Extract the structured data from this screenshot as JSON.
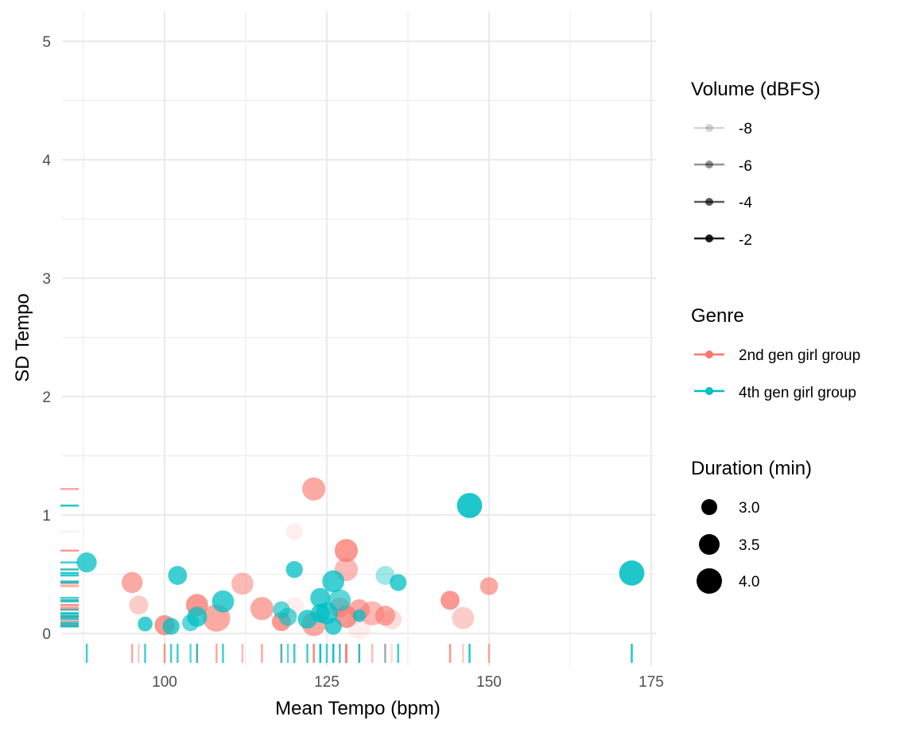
{
  "chart_data": {
    "type": "scatter",
    "xlabel": "Mean Tempo (bpm)",
    "ylabel": "SD Tempo",
    "xlim": [
      85,
      175
    ],
    "ylim": [
      0,
      5
    ],
    "x_ticks": [
      "100",
      "125",
      "150",
      "175"
    ],
    "y_ticks": [
      "0",
      "1",
      "2",
      "3",
      "4",
      "5"
    ],
    "grid": true,
    "rug": true,
    "legend_position": "right",
    "colors": {
      "2nd gen girl group": "#F8766D",
      "4th gen girl group": "#00BFC4"
    },
    "legends": {
      "volume": {
        "title": "Volume (dBFS)",
        "items": [
          "-8",
          "-6",
          "-4",
          "-2"
        ]
      },
      "genre": {
        "title": "Genre",
        "items": [
          "2nd gen girl group",
          "4th gen girl group"
        ]
      },
      "duration": {
        "title": "Duration (min)",
        "items": [
          "3.0",
          "3.5",
          "4.0"
        ]
      }
    },
    "series": [
      {
        "name": "2nd gen girl group",
        "points": [
          {
            "x": 95,
            "y": 0.43,
            "volume": -4,
            "duration": 3.5
          },
          {
            "x": 96,
            "y": 0.24,
            "volume": -6,
            "duration": 3.3
          },
          {
            "x": 100,
            "y": 0.07,
            "volume": -3,
            "duration": 3.4
          },
          {
            "x": 105,
            "y": 0.24,
            "volume": -3,
            "duration": 3.6
          },
          {
            "x": 108,
            "y": 0.13,
            "volume": -4,
            "duration": 4.1
          },
          {
            "x": 112,
            "y": 0.42,
            "volume": -5,
            "duration": 3.6
          },
          {
            "x": 115,
            "y": 0.21,
            "volume": -4,
            "duration": 3.7
          },
          {
            "x": 118,
            "y": 0.1,
            "volume": -3,
            "duration": 3.3
          },
          {
            "x": 120,
            "y": 0.22,
            "volume": -8,
            "duration": 3.4
          },
          {
            "x": 120,
            "y": 0.86,
            "volume": -8,
            "duration": 3.1
          },
          {
            "x": 123,
            "y": 1.22,
            "volume": -4,
            "duration": 3.7
          },
          {
            "x": 123,
            "y": 0.08,
            "volume": -4,
            "duration": 3.8
          },
          {
            "x": 127,
            "y": 0.22,
            "volume": -5,
            "duration": 3.4
          },
          {
            "x": 128,
            "y": 0.7,
            "volume": -3,
            "duration": 3.7
          },
          {
            "x": 128,
            "y": 0.54,
            "volume": -5,
            "duration": 3.7
          },
          {
            "x": 128,
            "y": 0.14,
            "volume": -3,
            "duration": 3.6
          },
          {
            "x": 130,
            "y": 0.05,
            "volume": -8,
            "duration": 3.7
          },
          {
            "x": 130,
            "y": 0.2,
            "volume": -4,
            "duration": 3.5
          },
          {
            "x": 132,
            "y": 0.17,
            "volume": -5,
            "duration": 3.8
          },
          {
            "x": 134,
            "y": 0.15,
            "volume": -4,
            "duration": 3.4
          },
          {
            "x": 135,
            "y": 0.12,
            "volume": -7,
            "duration": 3.4
          },
          {
            "x": 144,
            "y": 0.28,
            "volume": -3,
            "duration": 3.3
          },
          {
            "x": 146,
            "y": 0.13,
            "volume": -6,
            "duration": 3.6
          },
          {
            "x": 150,
            "y": 0.4,
            "volume": -4,
            "duration": 3.2
          }
        ]
      },
      {
        "name": "4th gen girl group",
        "points": [
          {
            "x": 88,
            "y": 0.6,
            "volume": -3,
            "duration": 3.4
          },
          {
            "x": 97,
            "y": 0.08,
            "volume": -3,
            "duration": 2.9
          },
          {
            "x": 101,
            "y": 0.06,
            "volume": -3,
            "duration": 3.1
          },
          {
            "x": 102,
            "y": 0.49,
            "volume": -3,
            "duration": 3.3
          },
          {
            "x": 104,
            "y": 0.09,
            "volume": -4,
            "duration": 3.1
          },
          {
            "x": 105,
            "y": 0.14,
            "volume": -3,
            "duration": 3.4
          },
          {
            "x": 109,
            "y": 0.27,
            "volume": -3,
            "duration": 3.6
          },
          {
            "x": 118,
            "y": 0.2,
            "volume": -4,
            "duration": 3.1
          },
          {
            "x": 119,
            "y": 0.14,
            "volume": -4,
            "duration": 3.2
          },
          {
            "x": 120,
            "y": 0.54,
            "volume": -3,
            "duration": 3.1
          },
          {
            "x": 122,
            "y": 0.12,
            "volume": -3,
            "duration": 3.3
          },
          {
            "x": 124,
            "y": 0.3,
            "volume": -3,
            "duration": 3.4
          },
          {
            "x": 124,
            "y": 0.17,
            "volume": -3,
            "duration": 3.3
          },
          {
            "x": 125,
            "y": 0.17,
            "volume": -3,
            "duration": 3.6
          },
          {
            "x": 126,
            "y": 0.44,
            "volume": -3,
            "duration": 3.6
          },
          {
            "x": 126,
            "y": 0.06,
            "volume": -3,
            "duration": 3.1
          },
          {
            "x": 127,
            "y": 0.28,
            "volume": -4,
            "duration": 3.6
          },
          {
            "x": 130,
            "y": 0.15,
            "volume": -3,
            "duration": 2.7
          },
          {
            "x": 134,
            "y": 0.49,
            "volume": -6,
            "duration": 3.3
          },
          {
            "x": 136,
            "y": 0.43,
            "volume": -3,
            "duration": 3.1
          },
          {
            "x": 147,
            "y": 1.08,
            "volume": -2,
            "duration": 3.9
          },
          {
            "x": 172,
            "y": 0.51,
            "volume": -2,
            "duration": 3.9
          }
        ]
      }
    ]
  }
}
